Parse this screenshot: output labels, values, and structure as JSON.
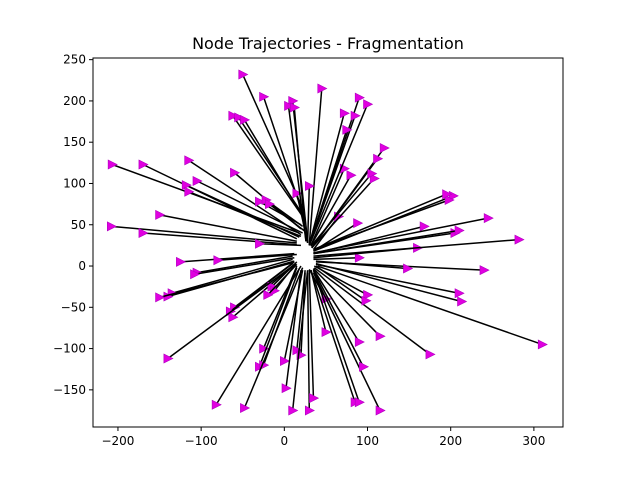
{
  "chart_data": {
    "type": "line",
    "title": "Node Trajectories - Fragmentation",
    "xlabel": "",
    "ylabel": "",
    "xlim": [
      -230,
      335
    ],
    "ylim": [
      -195,
      252
    ],
    "x_ticks": [
      -200,
      -100,
      0,
      100,
      200,
      300
    ],
    "y_ticks": [
      -150,
      -100,
      -50,
      0,
      50,
      100,
      150,
      200,
      250
    ],
    "grid": false,
    "line_color": "#000000",
    "marker": "triangle-right",
    "marker_color": "#e000e0",
    "trajectories": [
      {
        "start": [
          18,
          40
        ],
        "end": [
          -207,
          123
        ]
      },
      {
        "start": [
          15,
          33
        ],
        "end": [
          -170,
          123
        ]
      },
      {
        "start": [
          20,
          38
        ],
        "end": [
          -115,
          128
        ]
      },
      {
        "start": [
          18,
          35
        ],
        "end": [
          -118,
          98
        ]
      },
      {
        "start": [
          20,
          36
        ],
        "end": [
          -115,
          90
        ]
      },
      {
        "start": [
          22,
          40
        ],
        "end": [
          -105,
          103
        ]
      },
      {
        "start": [
          20,
          45
        ],
        "end": [
          -60,
          113
        ]
      },
      {
        "start": [
          22,
          60
        ],
        "end": [
          -62,
          182
        ]
      },
      {
        "start": [
          25,
          58
        ],
        "end": [
          -55,
          180
        ]
      },
      {
        "start": [
          25,
          55
        ],
        "end": [
          -48,
          177
        ]
      },
      {
        "start": [
          22,
          70
        ],
        "end": [
          -50,
          232
        ]
      },
      {
        "start": [
          25,
          55
        ],
        "end": [
          -25,
          205
        ]
      },
      {
        "start": [
          20,
          50
        ],
        "end": [
          -30,
          78
        ]
      },
      {
        "start": [
          22,
          48
        ],
        "end": [
          -22,
          80
        ]
      },
      {
        "start": [
          25,
          42
        ],
        "end": [
          -18,
          75
        ]
      },
      {
        "start": [
          15,
          30
        ],
        "end": [
          -150,
          62
        ]
      },
      {
        "start": [
          15,
          28
        ],
        "end": [
          -208,
          48
        ]
      },
      {
        "start": [
          15,
          26
        ],
        "end": [
          -170,
          40
        ]
      },
      {
        "start": [
          20,
          25
        ],
        "end": [
          -30,
          27
        ]
      },
      {
        "start": [
          12,
          15
        ],
        "end": [
          -125,
          5
        ]
      },
      {
        "start": [
          15,
          14
        ],
        "end": [
          -80,
          7
        ]
      },
      {
        "start": [
          10,
          12
        ],
        "end": [
          -105,
          -8
        ]
      },
      {
        "start": [
          12,
          10
        ],
        "end": [
          -108,
          -10
        ]
      },
      {
        "start": [
          10,
          8
        ],
        "end": [
          -135,
          -33
        ]
      },
      {
        "start": [
          12,
          6
        ],
        "end": [
          -140,
          -37
        ]
      },
      {
        "start": [
          10,
          4
        ],
        "end": [
          -150,
          -38
        ]
      },
      {
        "start": [
          12,
          5
        ],
        "end": [
          -60,
          -50
        ]
      },
      {
        "start": [
          10,
          3
        ],
        "end": [
          -65,
          -55
        ]
      },
      {
        "start": [
          12,
          2
        ],
        "end": [
          -62,
          -62
        ]
      },
      {
        "start": [
          15,
          5
        ],
        "end": [
          -15,
          -25
        ]
      },
      {
        "start": [
          14,
          3
        ],
        "end": [
          -12,
          -30
        ]
      },
      {
        "start": [
          15,
          2
        ],
        "end": [
          -20,
          -35
        ]
      },
      {
        "start": [
          10,
          0
        ],
        "end": [
          -140,
          -112
        ]
      },
      {
        "start": [
          15,
          0
        ],
        "end": [
          -25,
          -100
        ]
      },
      {
        "start": [
          15,
          -2
        ],
        "end": [
          -30,
          -122
        ]
      },
      {
        "start": [
          18,
          -3
        ],
        "end": [
          -25,
          -120
        ]
      },
      {
        "start": [
          20,
          0
        ],
        "end": [
          -82,
          -168
        ]
      },
      {
        "start": [
          22,
          -2
        ],
        "end": [
          -48,
          -172
        ]
      },
      {
        "start": [
          22,
          -5
        ],
        "end": [
          0,
          -115
        ]
      },
      {
        "start": [
          20,
          -5
        ],
        "end": [
          2,
          -148
        ]
      },
      {
        "start": [
          25,
          -5
        ],
        "end": [
          15,
          -102
        ]
      },
      {
        "start": [
          25,
          -8
        ],
        "end": [
          20,
          -108
        ]
      },
      {
        "start": [
          28,
          -5
        ],
        "end": [
          10,
          -175
        ]
      },
      {
        "start": [
          28,
          -8
        ],
        "end": [
          30,
          -175
        ]
      },
      {
        "start": [
          30,
          -5
        ],
        "end": [
          35,
          -160
        ]
      },
      {
        "start": [
          32,
          -5
        ],
        "end": [
          50,
          -80
        ]
      },
      {
        "start": [
          30,
          -4
        ],
        "end": [
          50,
          -40
        ]
      },
      {
        "start": [
          32,
          -5
        ],
        "end": [
          85,
          -165
        ]
      },
      {
        "start": [
          35,
          -5
        ],
        "end": [
          90,
          -165
        ]
      },
      {
        "start": [
          35,
          -8
        ],
        "end": [
          115,
          -175
        ]
      },
      {
        "start": [
          35,
          -5
        ],
        "end": [
          95,
          -122
        ]
      },
      {
        "start": [
          35,
          -4
        ],
        "end": [
          90,
          -92
        ]
      },
      {
        "start": [
          35,
          -3
        ],
        "end": [
          115,
          -85
        ]
      },
      {
        "start": [
          36,
          -2
        ],
        "end": [
          175,
          -107
        ]
      },
      {
        "start": [
          36,
          0
        ],
        "end": [
          100,
          -35
        ]
      },
      {
        "start": [
          38,
          0
        ],
        "end": [
          98,
          -42
        ]
      },
      {
        "start": [
          40,
          0
        ],
        "end": [
          310,
          -95
        ]
      },
      {
        "start": [
          38,
          2
        ],
        "end": [
          210,
          -33
        ]
      },
      {
        "start": [
          38,
          3
        ],
        "end": [
          213,
          -43
        ]
      },
      {
        "start": [
          38,
          5
        ],
        "end": [
          240,
          -5
        ]
      },
      {
        "start": [
          38,
          6
        ],
        "end": [
          148,
          -3
        ]
      },
      {
        "start": [
          35,
          8
        ],
        "end": [
          90,
          10
        ]
      },
      {
        "start": [
          35,
          10
        ],
        "end": [
          160,
          22
        ]
      },
      {
        "start": [
          35,
          12
        ],
        "end": [
          282,
          32
        ]
      },
      {
        "start": [
          35,
          15
        ],
        "end": [
          205,
          40
        ]
      },
      {
        "start": [
          35,
          15
        ],
        "end": [
          210,
          43
        ]
      },
      {
        "start": [
          35,
          15
        ],
        "end": [
          168,
          48
        ]
      },
      {
        "start": [
          35,
          16
        ],
        "end": [
          245,
          58
        ]
      },
      {
        "start": [
          35,
          18
        ],
        "end": [
          203,
          85
        ]
      },
      {
        "start": [
          35,
          20
        ],
        "end": [
          198,
          80
        ]
      },
      {
        "start": [
          35,
          20
        ],
        "end": [
          195,
          87
        ]
      },
      {
        "start": [
          35,
          18
        ],
        "end": [
          88,
          52
        ]
      },
      {
        "start": [
          35,
          20
        ],
        "end": [
          65,
          60
        ]
      },
      {
        "start": [
          33,
          22
        ],
        "end": [
          120,
          143
        ]
      },
      {
        "start": [
          33,
          22
        ],
        "end": [
          108,
          106
        ]
      },
      {
        "start": [
          33,
          22
        ],
        "end": [
          112,
          130
        ]
      },
      {
        "start": [
          32,
          24
        ],
        "end": [
          105,
          112
        ]
      },
      {
        "start": [
          32,
          25
        ],
        "end": [
          80,
          110
        ]
      },
      {
        "start": [
          32,
          25
        ],
        "end": [
          72,
          118
        ]
      },
      {
        "start": [
          30,
          25
        ],
        "end": [
          100,
          196
        ]
      },
      {
        "start": [
          30,
          25
        ],
        "end": [
          90,
          204
        ]
      },
      {
        "start": [
          30,
          25
        ],
        "end": [
          85,
          182
        ]
      },
      {
        "start": [
          30,
          26
        ],
        "end": [
          72,
          185
        ]
      },
      {
        "start": [
          30,
          26
        ],
        "end": [
          75,
          165
        ]
      },
      {
        "start": [
          30,
          26
        ],
        "end": [
          45,
          215
        ]
      },
      {
        "start": [
          28,
          28
        ],
        "end": [
          30,
          97
        ]
      },
      {
        "start": [
          28,
          28
        ],
        "end": [
          15,
          88
        ]
      },
      {
        "start": [
          28,
          30
        ],
        "end": [
          10,
          200
        ]
      },
      {
        "start": [
          26,
          30
        ],
        "end": [
          5,
          194
        ]
      },
      {
        "start": [
          26,
          30
        ],
        "end": [
          12,
          192
        ]
      }
    ]
  }
}
